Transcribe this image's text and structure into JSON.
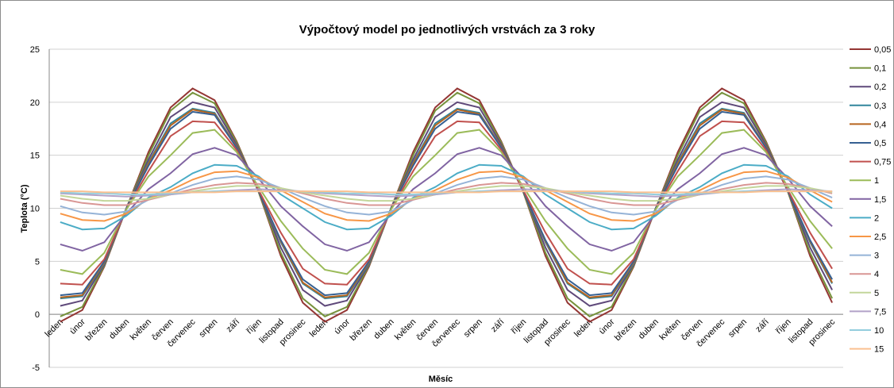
{
  "chart_data": {
    "type": "line",
    "title": "Výpočtový model po jednotlivých vrstvách za 3 roky",
    "ylabel": "Teplota (°C)",
    "xlabel": "Měsíc",
    "categories": [
      "leden",
      "únor",
      "březen",
      "duben",
      "květen",
      "červen",
      "červenec",
      "srpen",
      "září",
      "říjen",
      "listopad",
      "prosinec",
      "leden",
      "únor",
      "březen",
      "duben",
      "květen",
      "červen",
      "červenec",
      "srpen",
      "září",
      "říjen",
      "listopad",
      "prosinec",
      "leden",
      "únor",
      "březen",
      "duben",
      "květen",
      "červen",
      "červenec",
      "srpen",
      "září",
      "říjen",
      "listopad",
      "prosinec"
    ],
    "ylim": [
      -5,
      25
    ],
    "yticks": [
      -5,
      0,
      5,
      10,
      15,
      20,
      25
    ],
    "grid": true,
    "legend": "right",
    "series": [
      {
        "name": "0,05",
        "color": "#943634",
        "values": [
          -0.7,
          0.4,
          4.5,
          10,
          15.3,
          19.5,
          21.3,
          20.2,
          16.3,
          11.5,
          5.5,
          1.1,
          -0.7,
          0.4,
          4.5,
          10,
          15.3,
          19.5,
          21.3,
          20.2,
          16.3,
          11.5,
          5.5,
          1.1,
          -0.7,
          0.4,
          4.5,
          10,
          15.3,
          19.5,
          21.3,
          20.2,
          16.3,
          11.5,
          5.5,
          1.1
        ]
      },
      {
        "name": "0,1",
        "color": "#76923C",
        "values": [
          -0.2,
          0.7,
          4.6,
          10,
          15,
          19.2,
          20.9,
          19.9,
          16.2,
          11.5,
          5.8,
          1.5,
          -0.2,
          0.7,
          4.6,
          10,
          15,
          19.2,
          20.9,
          19.9,
          16.2,
          11.5,
          5.8,
          1.5,
          -0.2,
          0.7,
          4.6,
          10,
          15,
          19.2,
          20.9,
          19.9,
          16.2,
          11.5,
          5.8,
          1.5
        ]
      },
      {
        "name": "0,2",
        "color": "#5F497A",
        "values": [
          0.8,
          1.3,
          4.7,
          10,
          14.6,
          18.6,
          20,
          19.5,
          16,
          11.6,
          6.3,
          2.3,
          0.8,
          1.3,
          4.7,
          10,
          14.6,
          18.6,
          20,
          19.5,
          16,
          11.6,
          6.3,
          2.3,
          0.8,
          1.3,
          4.7,
          10,
          14.6,
          18.6,
          20,
          19.5,
          16,
          11.6,
          6.3,
          2.3
        ]
      },
      {
        "name": "0,3",
        "color": "#31859C",
        "values": [
          1.5,
          1.7,
          4.8,
          10,
          14.3,
          18,
          19.4,
          19,
          15.8,
          11.6,
          6.8,
          2.9,
          1.5,
          1.7,
          4.8,
          10,
          14.3,
          18,
          19.4,
          19,
          15.8,
          11.6,
          6.8,
          2.9,
          1.5,
          1.7,
          4.8,
          10,
          14.3,
          18,
          19.4,
          19,
          15.8,
          11.6,
          6.8,
          2.9
        ]
      },
      {
        "name": "0,4",
        "color": "#B7651F",
        "values": [
          1.6,
          1.8,
          4.9,
          10,
          14.2,
          17.8,
          19.3,
          18.9,
          15.8,
          11.6,
          6.9,
          3,
          1.6,
          1.8,
          4.9,
          10,
          14.2,
          17.8,
          19.3,
          18.9,
          15.8,
          11.6,
          6.9,
          3,
          1.6,
          1.8,
          4.9,
          10,
          14.2,
          17.8,
          19.3,
          18.9,
          15.8,
          11.6,
          6.9,
          3
        ]
      },
      {
        "name": "0,5",
        "color": "#366092",
        "values": [
          1.8,
          2,
          5,
          10,
          14,
          17.5,
          19.1,
          18.8,
          15.7,
          11.6,
          7,
          3.3,
          1.8,
          2,
          5,
          10,
          14,
          17.5,
          19.1,
          18.8,
          15.7,
          11.6,
          7,
          3.3,
          1.8,
          2,
          5,
          10,
          14,
          17.5,
          19.1,
          18.8,
          15.7,
          11.6,
          7,
          3.3
        ]
      },
      {
        "name": "0,75",
        "color": "#C0504D",
        "values": [
          2.9,
          2.8,
          5.2,
          9.9,
          13.5,
          16.8,
          18.2,
          18.1,
          15.5,
          11.7,
          7.7,
          4.3,
          2.9,
          2.8,
          5.2,
          9.9,
          13.5,
          16.8,
          18.2,
          18.1,
          15.5,
          11.7,
          7.7,
          4.3,
          2.9,
          2.8,
          5.2,
          9.9,
          13.5,
          16.8,
          18.2,
          18.1,
          15.5,
          11.7,
          7.7,
          4.3
        ]
      },
      {
        "name": "1",
        "color": "#9BBB59",
        "values": [
          4.2,
          3.8,
          5.8,
          9.9,
          13,
          15,
          17.1,
          17.4,
          15.3,
          12,
          8.8,
          6.2,
          4.2,
          3.8,
          5.8,
          9.9,
          13,
          15,
          17.1,
          17.4,
          15.3,
          12,
          8.8,
          6.2,
          4.2,
          3.8,
          5.8,
          9.9,
          13,
          15,
          17.1,
          17.4,
          15.3,
          12,
          8.8,
          6.2
        ]
      },
      {
        "name": "1,5",
        "color": "#8064A2",
        "values": [
          6.6,
          6,
          6.8,
          9.5,
          11.8,
          13.3,
          15.1,
          15.7,
          15,
          12.8,
          10.2,
          8.3,
          6.6,
          6,
          6.8,
          9.5,
          11.8,
          13.3,
          15.1,
          15.7,
          15,
          12.8,
          10.2,
          8.3,
          6.6,
          6,
          6.8,
          9.5,
          11.8,
          13.3,
          15.1,
          15.7,
          15,
          12.8,
          10.2,
          8.3
        ]
      },
      {
        "name": "2",
        "color": "#4BACC6",
        "values": [
          8.7,
          8,
          8.1,
          9.3,
          11,
          12,
          13.3,
          14.1,
          14,
          13,
          11.3,
          10,
          8.7,
          8,
          8.1,
          9.3,
          11,
          12,
          13.3,
          14.1,
          14,
          13,
          11.3,
          10,
          8.7,
          8,
          8.1,
          9.3,
          11,
          12,
          13.3,
          14.1,
          14,
          13,
          11.3,
          10
        ]
      },
      {
        "name": "2,5",
        "color": "#F79646",
        "values": [
          9.5,
          8.9,
          8.8,
          9.5,
          10.9,
          11.7,
          12.7,
          13.4,
          13.5,
          12.9,
          11.7,
          10.6,
          9.5,
          8.9,
          8.8,
          9.5,
          10.9,
          11.7,
          12.7,
          13.4,
          13.5,
          12.9,
          11.7,
          10.6,
          9.5,
          8.9,
          8.8,
          9.5,
          10.9,
          11.7,
          12.7,
          13.4,
          13.5,
          12.9,
          11.7,
          10.6
        ]
      },
      {
        "name": "3",
        "color": "#95B3D7",
        "values": [
          10.2,
          9.6,
          9.4,
          9.7,
          10.8,
          11.4,
          12.2,
          12.8,
          13,
          12.7,
          11.9,
          11,
          10.2,
          9.6,
          9.4,
          9.7,
          10.8,
          11.4,
          12.2,
          12.8,
          13,
          12.7,
          11.9,
          11,
          10.2,
          9.6,
          9.4,
          9.7,
          10.8,
          11.4,
          12.2,
          12.8,
          13,
          12.7,
          11.9,
          11
        ]
      },
      {
        "name": "4",
        "color": "#D99694",
        "values": [
          10.9,
          10.5,
          10.3,
          10.3,
          10.8,
          11.3,
          11.8,
          12.2,
          12.4,
          12.3,
          11.9,
          11.4,
          10.9,
          10.5,
          10.3,
          10.3,
          10.8,
          11.3,
          11.8,
          12.2,
          12.4,
          12.3,
          11.9,
          11.4,
          10.9,
          10.5,
          10.3,
          10.3,
          10.8,
          11.3,
          11.8,
          12.2,
          12.4,
          12.3,
          11.9,
          11.4
        ]
      },
      {
        "name": "5",
        "color": "#C3D69B",
        "values": [
          11.2,
          10.9,
          10.7,
          10.7,
          10.9,
          11.3,
          11.6,
          11.9,
          12.1,
          12.1,
          11.9,
          11.5,
          11.2,
          10.9,
          10.7,
          10.7,
          10.9,
          11.3,
          11.6,
          11.9,
          12.1,
          12.1,
          11.9,
          11.5,
          11.2,
          10.9,
          10.7,
          10.7,
          10.9,
          11.3,
          11.6,
          11.9,
          12.1,
          12.1,
          11.9,
          11.5
        ]
      },
      {
        "name": "7,5",
        "color": "#B2A2C7",
        "values": [
          11.4,
          11.3,
          11.2,
          11.1,
          11.2,
          11.3,
          11.5,
          11.6,
          11.7,
          11.8,
          11.7,
          11.6,
          11.4,
          11.3,
          11.2,
          11.1,
          11.2,
          11.3,
          11.5,
          11.6,
          11.7,
          11.8,
          11.7,
          11.6,
          11.4,
          11.3,
          11.2,
          11.1,
          11.2,
          11.3,
          11.5,
          11.6,
          11.7,
          11.8,
          11.7,
          11.6
        ]
      },
      {
        "name": "10",
        "color": "#93CDDD",
        "values": [
          11.5,
          11.4,
          11.4,
          11.3,
          11.3,
          11.4,
          11.5,
          11.6,
          11.6,
          11.6,
          11.6,
          11.6,
          11.5,
          11.4,
          11.4,
          11.3,
          11.3,
          11.4,
          11.5,
          11.6,
          11.6,
          11.6,
          11.6,
          11.6,
          11.5,
          11.4,
          11.4,
          11.3,
          11.3,
          11.4,
          11.5,
          11.6,
          11.6,
          11.6,
          11.6,
          11.6
        ]
      },
      {
        "name": "15",
        "color": "#FAC090",
        "values": [
          11.6,
          11.6,
          11.5,
          11.5,
          11.5,
          11.5,
          11.5,
          11.5,
          11.6,
          11.6,
          11.6,
          11.6,
          11.6,
          11.6,
          11.5,
          11.5,
          11.5,
          11.5,
          11.5,
          11.5,
          11.6,
          11.6,
          11.6,
          11.6,
          11.6,
          11.6,
          11.5,
          11.5,
          11.5,
          11.5,
          11.5,
          11.5,
          11.6,
          11.6,
          11.6,
          11.6
        ]
      }
    ]
  }
}
